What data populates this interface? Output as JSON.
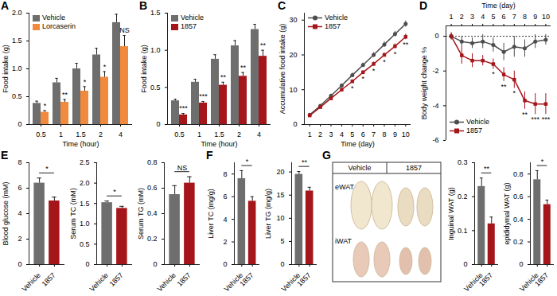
{
  "chart_data": [
    {
      "panel": "A",
      "type": "bar",
      "categories": [
        0.5,
        1,
        1.5,
        2,
        4
      ],
      "xlabel": "Time (hour)",
      "ylabel": "Food intake (g)",
      "ylim": [
        0,
        2
      ],
      "yticks": [
        0,
        0.5,
        {
          "value": 1,
          "label": "1.0"
        },
        1.5,
        {
          "value": 2,
          "label": "2.0"
        }
      ],
      "legend": "upper left",
      "series": [
        {
          "name": "Vehicle",
          "color": "#6e6e6e",
          "values": [
            0.38,
            0.75,
            1.0,
            1.25,
            1.83
          ],
          "errors": [
            0.04,
            0.08,
            0.1,
            0.12,
            0.15
          ]
        },
        {
          "name": "Lorcaserin",
          "color": "#f28a3d",
          "values": [
            0.22,
            0.4,
            0.6,
            0.85,
            1.4
          ],
          "errors": [
            0.03,
            0.05,
            0.08,
            0.1,
            0.2
          ]
        }
      ],
      "annotations": [
        "*",
        "**",
        "*",
        "*",
        "NS"
      ]
    },
    {
      "panel": "B",
      "type": "bar",
      "categories": [
        0.5,
        1,
        1.5,
        2,
        4
      ],
      "xlabel": "Time (hour)",
      "ylabel": "Food intake (g)",
      "ylim": [
        0,
        1.5
      ],
      "yticks": [
        0,
        0.5,
        {
          "value": 1,
          "label": "1.0"
        },
        1.5
      ],
      "legend": "upper left",
      "series": [
        {
          "name": "Vehicle",
          "color": "#6e6e6e",
          "values": [
            0.32,
            0.57,
            0.88,
            1.06,
            1.28
          ],
          "errors": [
            0.02,
            0.04,
            0.06,
            0.07,
            0.07
          ]
        },
        {
          "name": "1857",
          "color": "#a5161b",
          "values": [
            0.13,
            0.29,
            0.53,
            0.65,
            0.92
          ],
          "errors": [
            0.02,
            0.02,
            0.04,
            0.05,
            0.08
          ]
        }
      ],
      "annotations": [
        "***",
        "***",
        "**",
        "**",
        "**"
      ]
    },
    {
      "panel": "C",
      "type": "line",
      "x": [
        1,
        2,
        3,
        4,
        5,
        6,
        7,
        8,
        9,
        10
      ],
      "xlabel": "Time (day)",
      "ylabel": "Accumulative food intake (g)",
      "xlim": [
        0.5,
        10.5
      ],
      "xticks": [
        1,
        2,
        3,
        4,
        5,
        6,
        7,
        8,
        9,
        10
      ],
      "ylim": [
        0,
        32
      ],
      "yticks": [
        0,
        10,
        20,
        30
      ],
      "legend": "upper left",
      "series": [
        {
          "name": "Vehicle",
          "color": "#4d4d4d",
          "marker": "circle",
          "values": [
            2.8,
            5.4,
            8.3,
            11.2,
            14.2,
            17.1,
            20.0,
            23.0,
            26.0,
            28.9
          ],
          "errors": [
            0.2,
            0.3,
            0.4,
            0.5,
            0.6,
            0.6,
            0.7,
            0.8,
            0.8,
            0.9
          ]
        },
        {
          "name": "1857",
          "color": "#a5161b",
          "marker": "square",
          "values": [
            2.6,
            5.0,
            7.5,
            10.0,
            12.4,
            15.0,
            17.4,
            20.0,
            22.5,
            25.2
          ],
          "errors": [
            0.2,
            0.3,
            0.3,
            0.4,
            0.5,
            0.5,
            0.6,
            0.6,
            0.7,
            0.8
          ]
        }
      ],
      "annotations": [
        null,
        null,
        null,
        null,
        "*",
        "*",
        "*",
        "*",
        "*",
        "**"
      ]
    },
    {
      "panel": "D",
      "type": "line",
      "x": [
        1,
        2,
        3,
        4,
        5,
        6,
        7,
        8,
        9,
        10
      ],
      "xlabel": "Time (day)",
      "ylabel": "Body weight change %",
      "xlim": [
        0.5,
        10.5
      ],
      "xticks": [
        1,
        2,
        3,
        4,
        5,
        6,
        7,
        8,
        9,
        10
      ],
      "ylim": [
        -6,
        0.6
      ],
      "yticks": [
        0,
        -2,
        -4,
        -6
      ],
      "legend": "lower left",
      "baseline": 0,
      "series": [
        {
          "name": "Vehicle",
          "color": "#4d4d4d",
          "marker": "circle",
          "values": [
            0,
            -0.3,
            -0.4,
            -0.3,
            -0.5,
            -0.9,
            -0.6,
            -0.7,
            -0.3,
            -0.2
          ],
          "errors": [
            0.2,
            0.3,
            0.3,
            0.4,
            0.4,
            0.5,
            0.6,
            0.5,
            0.4,
            0.3
          ]
        },
        {
          "name": "1857",
          "color": "#a5161b",
          "marker": "square",
          "values": [
            0,
            -1.1,
            -1.4,
            -1.4,
            -1.6,
            -2.2,
            -2.5,
            -3.7,
            -3.9,
            -3.9
          ],
          "errors": [
            0.2,
            0.5,
            0.4,
            0.3,
            0.3,
            0.4,
            0.5,
            0.5,
            0.6,
            0.6
          ]
        }
      ],
      "annotations": [
        null,
        null,
        null,
        null,
        "*",
        "**",
        "*",
        "**",
        "***",
        "***"
      ]
    },
    {
      "panel": "E",
      "type": "bar",
      "categories": [
        "Vehicle",
        "1857"
      ],
      "ylabel": "Blood glucose (mM)",
      "ylim": [
        0,
        8
      ],
      "yticks": [
        0,
        2,
        4,
        6,
        8
      ],
      "values": [
        6.4,
        5.0
      ],
      "errors": [
        0.4,
        0.3
      ],
      "colors": [
        "#6e6e6e",
        "#a5161b"
      ],
      "annotation": "*"
    },
    {
      "type": "bar",
      "categories": [
        "Vehicle",
        "1857"
      ],
      "ylabel": "Serum TC (mM)",
      "ylim": [
        0,
        2.5
      ],
      "yticks": [
        0,
        0.5,
        {
          "value": 1,
          "label": "1.0"
        },
        1.5,
        {
          "value": 2,
          "label": "2.0"
        },
        2.5
      ],
      "values": [
        1.52,
        1.38
      ],
      "errors": [
        0.04,
        0.05
      ],
      "colors": [
        "#6e6e6e",
        "#a5161b"
      ],
      "annotation": "*"
    },
    {
      "type": "bar",
      "categories": [
        "Vehicle",
        "1857"
      ],
      "ylabel": "Serum TG (mM)",
      "ylim": [
        0,
        0.8
      ],
      "yticks": [
        0,
        0.2,
        0.4,
        0.6,
        0.8
      ],
      "values": [
        0.55,
        0.64
      ],
      "errors": [
        0.07,
        0.05
      ],
      "colors": [
        "#6e6e6e",
        "#a5161b"
      ],
      "annotation": "NS"
    },
    {
      "panel": "F",
      "type": "bar",
      "categories": [
        "Vehicle",
        "1857"
      ],
      "ylabel": "Liver TC (mg/g)",
      "ylim": [
        0,
        9
      ],
      "yticks": [
        0,
        2,
        4,
        6,
        8
      ],
      "values": [
        7.6,
        5.6
      ],
      "errors": [
        0.7,
        0.4
      ],
      "colors": [
        "#6e6e6e",
        "#a5161b"
      ],
      "annotation": "*"
    },
    {
      "type": "bar",
      "categories": [
        "Vehicle",
        "1857"
      ],
      "ylabel": "Liver TG (mg/g)",
      "ylim": [
        0,
        22
      ],
      "yticks": [
        0,
        5,
        10,
        15,
        20
      ],
      "values": [
        19.5,
        15.9
      ],
      "errors": [
        0.6,
        0.8
      ],
      "colors": [
        "#6e6e6e",
        "#a5161b"
      ],
      "annotation": "**"
    },
    {
      "type": "bar",
      "categories": [
        "Vehicle",
        "1857"
      ],
      "ylabel": "Inguinal WAT (g)",
      "ylim": [
        0,
        0.3
      ],
      "yticks": [
        0,
        0.1,
        0.2,
        0.3
      ],
      "values": [
        0.23,
        0.12
      ],
      "errors": [
        0.025,
        0.02
      ],
      "colors": [
        "#6e6e6e",
        "#a5161b"
      ],
      "annotation": "**"
    },
    {
      "type": "bar",
      "categories": [
        "Vehicle",
        "1857"
      ],
      "ylabel": "epididymal WAT (g)",
      "ylim": [
        0,
        0.9
      ],
      "yticks": [
        0,
        0.2,
        0.4,
        0.6,
        0.8
      ],
      "values": [
        0.75,
        0.53
      ],
      "errors": [
        0.08,
        0.04
      ],
      "colors": [
        "#6e6e6e",
        "#a5161b"
      ],
      "annotation": "*"
    }
  ],
  "photo": {
    "panel": "G",
    "columns": [
      "Vehicle",
      "1857"
    ],
    "rows": [
      "eWAT",
      "iWAT"
    ]
  }
}
